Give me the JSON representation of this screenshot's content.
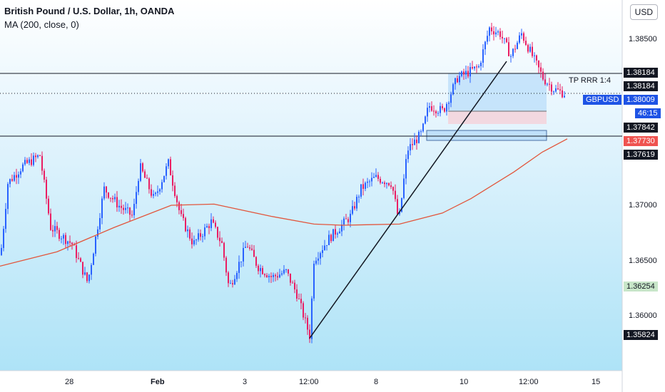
{
  "header": {
    "title": "British Pound / U.S. Dollar, 1h, OANDA",
    "indicator": "MA (200, close, 0)",
    "currency_button": "USD"
  },
  "price_axis": {
    "labels": [
      "1.38500",
      "1.37000",
      "1.36500",
      "1.36000"
    ]
  },
  "time_axis": {
    "labels": [
      "28",
      "Feb",
      "3",
      "12:00",
      "8",
      "10",
      "12:00",
      "15"
    ]
  },
  "annotations": {
    "tp_text": "TP RRR 1:4"
  },
  "price_tags": {
    "resistance_top": "1.38184",
    "last_price": "1.38184",
    "symbol": "GBPUSD",
    "current": "1.38009",
    "countdown": "46:15",
    "level_mid": "1.37842",
    "stop": "1.37730",
    "support": "1.37619",
    "green_level": "1.36254",
    "low_level": "1.35824"
  },
  "colors": {
    "up_candle": "#2962ff",
    "down_candle": "#e91e63",
    "ma_line": "#e2553b",
    "tag_dark": "#131722",
    "tag_blue": "#1e53e5",
    "tag_red": "#ef5350",
    "tag_green": "#c8e6c9"
  },
  "chart_data": {
    "type": "candlestick",
    "price_range": [
      1.3565,
      1.3885
    ],
    "series_note": "GBPUSD 1h candles, late Jan to mid Feb",
    "ma_points": [
      [
        0,
        1.3645
      ],
      [
        80,
        1.3658
      ],
      [
        160,
        1.368
      ],
      [
        240,
        1.37
      ],
      [
        300,
        1.3701
      ],
      [
        380,
        1.369
      ],
      [
        440,
        1.3683
      ],
      [
        480,
        1.3682
      ],
      [
        560,
        1.3683
      ],
      [
        620,
        1.3693
      ],
      [
        660,
        1.3706
      ],
      [
        720,
        1.373
      ],
      [
        760,
        1.3748
      ],
      [
        795,
        1.376
      ]
    ],
    "trend_line": [
      [
        434,
        1.358
      ],
      [
        710,
        1.383
      ]
    ],
    "horizontal_levels": [
      1.38184,
      1.37619
    ]
  }
}
